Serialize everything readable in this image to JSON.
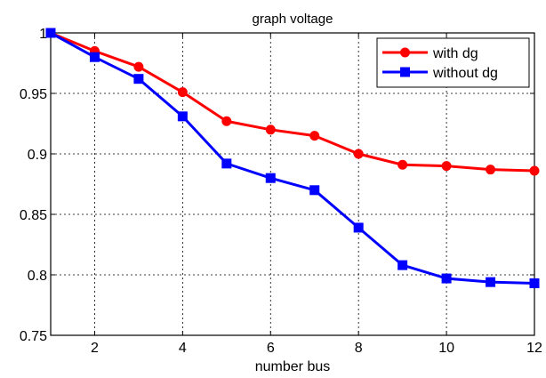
{
  "chart_data": {
    "type": "line",
    "title": "graph voltage",
    "xlabel": "number bus",
    "ylabel": "",
    "xlim": [
      1,
      12
    ],
    "ylim": [
      0.75,
      1
    ],
    "xticks": [
      2,
      4,
      6,
      8,
      10,
      12
    ],
    "xtick_labels": [
      "2",
      "4",
      "6",
      "8",
      "10",
      "12"
    ],
    "yticks": [
      0.75,
      0.8,
      0.85,
      0.9,
      0.95,
      1
    ],
    "ytick_labels": [
      "0.75",
      "0.8",
      "0.85",
      "0.9",
      "0.95",
      "1"
    ],
    "grid": true,
    "legend_position": "top-right",
    "x": [
      1,
      2,
      3,
      4,
      5,
      6,
      7,
      8,
      9,
      10,
      11,
      12
    ],
    "series": [
      {
        "name": "with dg",
        "color": "#ff0000",
        "marker": "circle",
        "values": [
          1.0,
          0.985,
          0.972,
          0.951,
          0.927,
          0.92,
          0.915,
          0.9,
          0.891,
          0.89,
          0.887,
          0.886
        ]
      },
      {
        "name": "without dg",
        "color": "#0000ff",
        "marker": "square",
        "values": [
          1.0,
          0.98,
          0.962,
          0.931,
          0.892,
          0.88,
          0.87,
          0.839,
          0.808,
          0.797,
          0.794,
          0.793
        ]
      }
    ]
  }
}
